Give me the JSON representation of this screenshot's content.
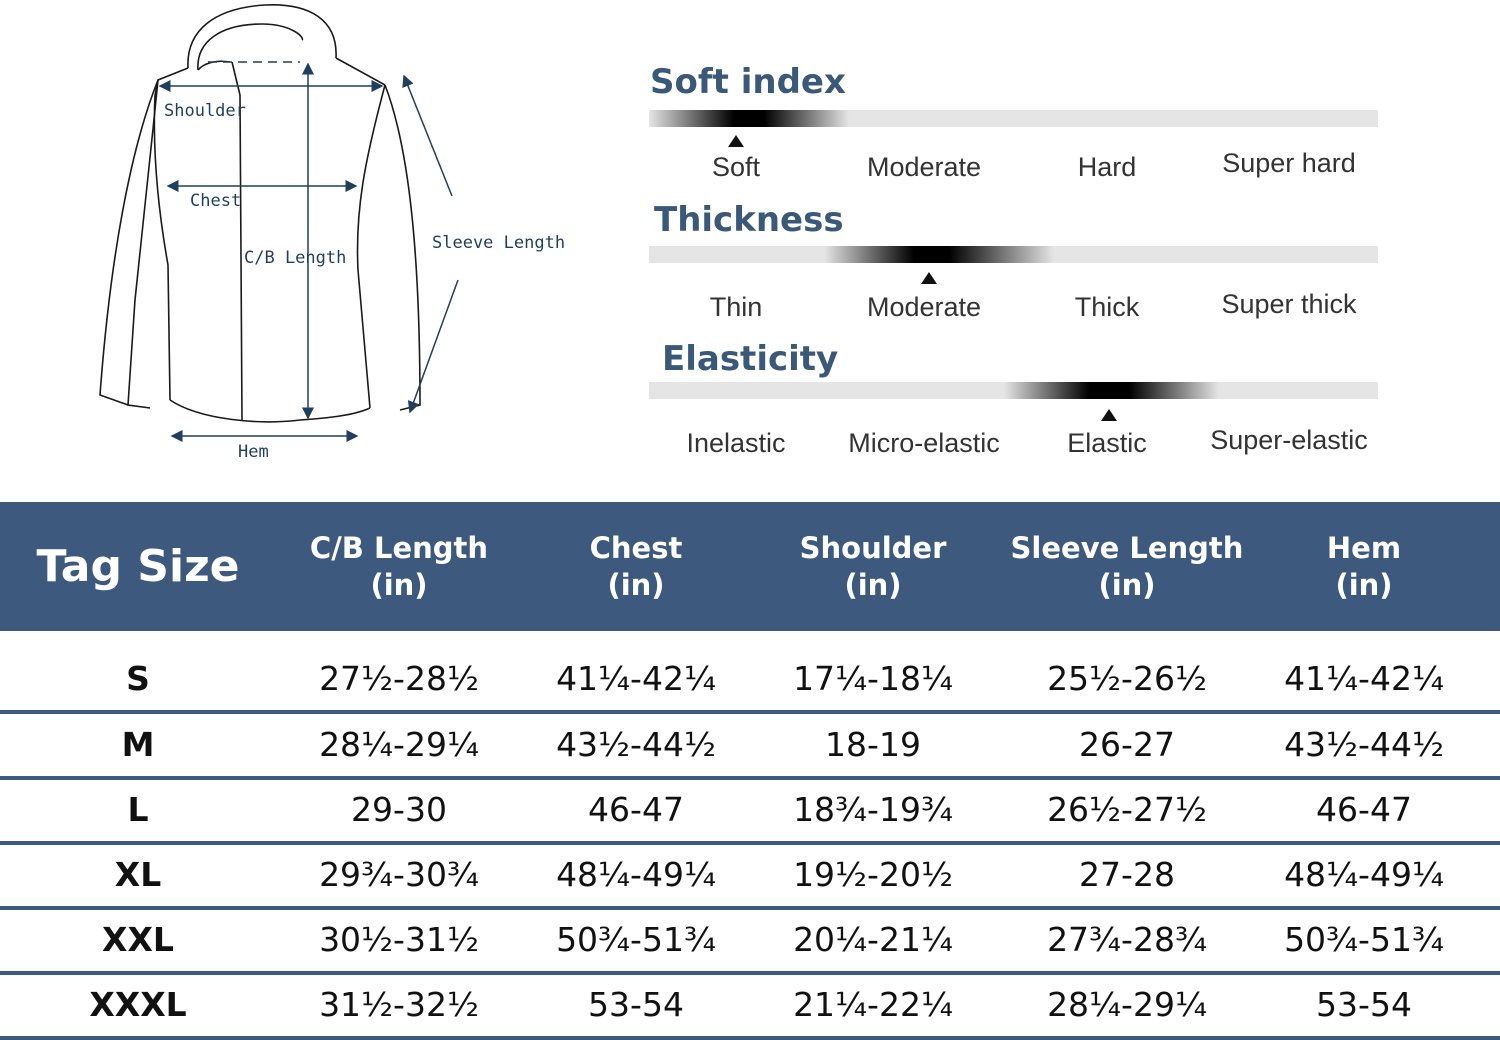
{
  "diagram": {
    "labels": {
      "shoulder": "Shoulder",
      "chest": "Chest",
      "cb_length": "C/B Length",
      "sleeve_length": "Sleeve Length",
      "hem": "Hem"
    }
  },
  "attributes": [
    {
      "title": "Soft index",
      "options": [
        "Soft",
        "Moderate",
        "Hard",
        "Super hard"
      ],
      "selected": "Soft"
    },
    {
      "title": "Thickness",
      "options": [
        "Thin",
        "Moderate",
        "Thick",
        "Super thick"
      ],
      "selected": "Moderate"
    },
    {
      "title": "Elasticity",
      "options": [
        "Inelastic",
        "Micro-elastic",
        "Elastic",
        "Super-elastic"
      ],
      "selected": "Elastic"
    }
  ],
  "table": {
    "header": {
      "tag_size": "Tag Size",
      "columns": [
        {
          "name": "C/B Length",
          "unit": "(in)"
        },
        {
          "name": "Chest",
          "unit": "(in)"
        },
        {
          "name": "Shoulder",
          "unit": "(in)"
        },
        {
          "name": "Sleeve Length",
          "unit": "(in)"
        },
        {
          "name": "Hem",
          "unit": "(in)"
        }
      ]
    },
    "rows": [
      {
        "size": "S",
        "cb_length": "27½-28½",
        "chest": "41¼-42¼",
        "shoulder": "17¼-18¼",
        "sleeve_length": "25½-26½",
        "hem": "41¼-42¼"
      },
      {
        "size": "M",
        "cb_length": "28¼-29¼",
        "chest": "43½-44½",
        "shoulder": "18-19",
        "sleeve_length": "26-27",
        "hem": "43½-44½"
      },
      {
        "size": "L",
        "cb_length": "29-30",
        "chest": "46-47",
        "shoulder": "18¾-19¾",
        "sleeve_length": "26½-27½",
        "hem": "46-47"
      },
      {
        "size": "XL",
        "cb_length": "29¾-30¾",
        "chest": "48¼-49¼",
        "shoulder": "19½-20½",
        "sleeve_length": "27-28",
        "hem": "48¼-49¼"
      },
      {
        "size": "XXL",
        "cb_length": "30½-31½",
        "chest": "50¾-51¾",
        "shoulder": "20¼-21¼",
        "sleeve_length": "27¾-28¾",
        "hem": "50¾-51¾"
      },
      {
        "size": "XXXL",
        "cb_length": "31½-32½",
        "chest": "53-54",
        "shoulder": "21¼-22¼",
        "sleeve_length": "28¼-29¼",
        "hem": "53-54"
      }
    ]
  },
  "colors": {
    "header_bg": "#3d5a7e",
    "title_text": "#3a5878",
    "measure_line": "#1f3f5f"
  }
}
